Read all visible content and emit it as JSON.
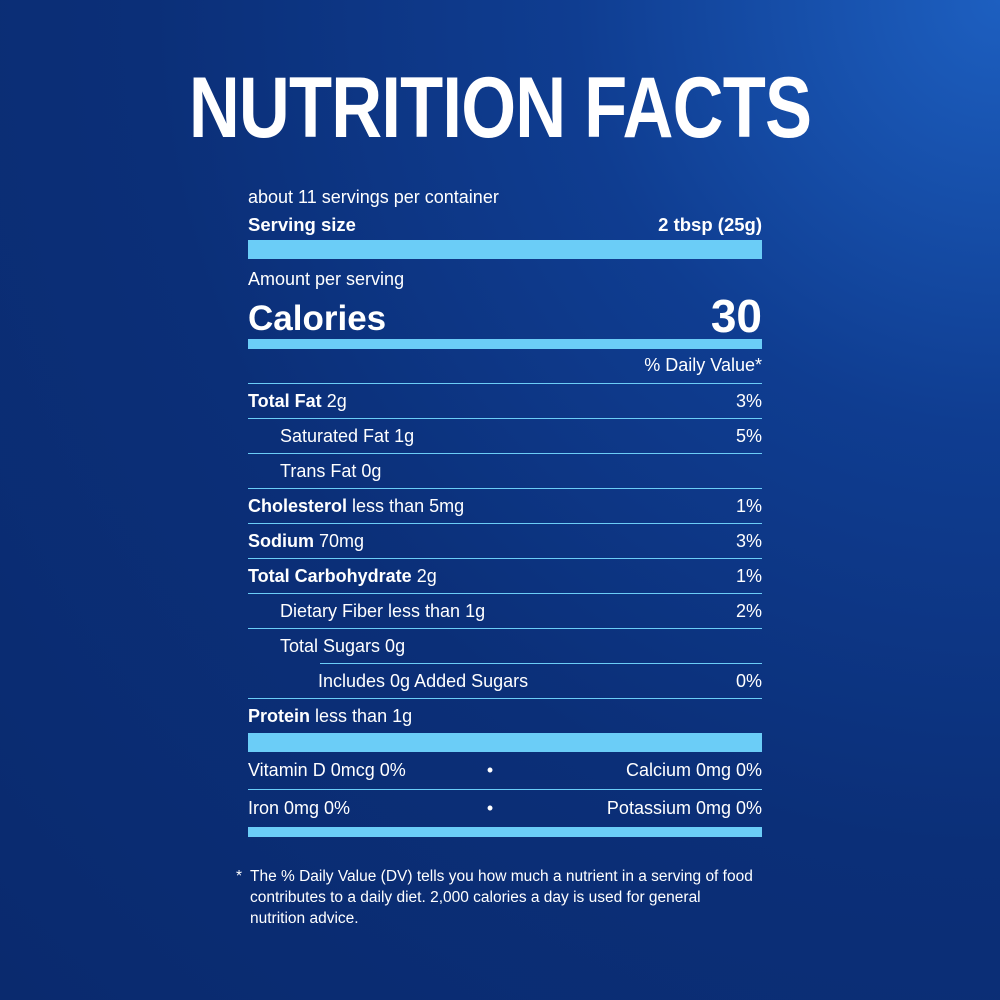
{
  "title": "NUTRITION FACTS",
  "servings_per_container": "about 11 servings per container",
  "serving_size": {
    "label": "Serving size",
    "value": "2 tbsp (25g)"
  },
  "amount_per_serving": "Amount per serving",
  "calories": {
    "label": "Calories",
    "value": "30"
  },
  "daily_value_header": "% Daily Value*",
  "nutrients": [
    {
      "name": "Total Fat",
      "amount": "2g",
      "dv": "3%"
    },
    {
      "name": "Saturated Fat 1g",
      "amount": "",
      "dv": "5%"
    },
    {
      "name": "Trans Fat 0g",
      "amount": "",
      "dv": ""
    },
    {
      "name": "Cholesterol",
      "amount": "less than 5mg",
      "dv": "1%"
    },
    {
      "name": "Sodium",
      "amount": "70mg",
      "dv": "3%"
    },
    {
      "name": "Total Carbohydrate",
      "amount": "2g",
      "dv": "1%"
    },
    {
      "name": "Dietary Fiber less than 1g",
      "amount": "",
      "dv": "2%"
    },
    {
      "name": "Total Sugars 0g",
      "amount": "",
      "dv": ""
    },
    {
      "name": "Includes 0g Added Sugars",
      "amount": "",
      "dv": "0%"
    },
    {
      "name": "Protein",
      "amount": "less than 1g",
      "dv": ""
    }
  ],
  "vitamins": [
    {
      "left": "Vitamin D 0mcg 0%",
      "separator": "•",
      "right": "Calcium 0mg 0%"
    },
    {
      "left": "Iron 0mg 0%",
      "separator": "•",
      "right": "Potassium 0mg 0%"
    }
  ],
  "footnote": {
    "star": "*",
    "text": "The % Daily Value (DV) tells you how much a nutrient in a serving of food contributes to a daily diet. 2,000 calories a day is used for general nutrition advice."
  },
  "colors": {
    "background": "#0b2f78",
    "accent": "#6bcdf7",
    "text": "#ffffff"
  }
}
